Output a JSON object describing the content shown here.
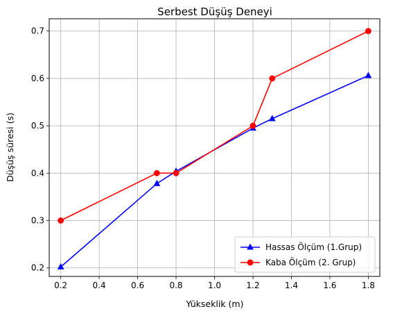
{
  "chart_data": {
    "type": "line",
    "title": "Serbest Düşüş Deneyi",
    "xlabel": "Yükseklik (m)",
    "ylabel": "Düşüş süresi (s)",
    "xlim": [
      0.14,
      1.86
    ],
    "ylim": [
      0.182,
      0.726
    ],
    "xticks": [
      "0.2",
      "0.4",
      "0.6",
      "0.8",
      "1.0",
      "1.2",
      "1.4",
      "1.6",
      "1.8"
    ],
    "yticks": [
      "0.2",
      "0.3",
      "0.4",
      "0.5",
      "0.6",
      "0.7"
    ],
    "grid": true,
    "legend_position": "lower right",
    "series": [
      {
        "name": "Hassas Ölçüm (1.Grup)",
        "color": "#0000ff",
        "marker": "triangle",
        "x": [
          0.2,
          0.7,
          0.8,
          1.2,
          1.3,
          1.8
        ],
        "y": [
          0.202,
          0.378,
          0.404,
          0.495,
          0.515,
          0.606
        ]
      },
      {
        "name": "Kaba Ölçüm (2. Grup)",
        "color": "#ff0000",
        "marker": "circle",
        "x": [
          0.2,
          0.7,
          0.8,
          1.2,
          1.3,
          1.8
        ],
        "y": [
          0.3,
          0.4,
          0.4,
          0.5,
          0.6,
          0.7
        ]
      }
    ]
  }
}
